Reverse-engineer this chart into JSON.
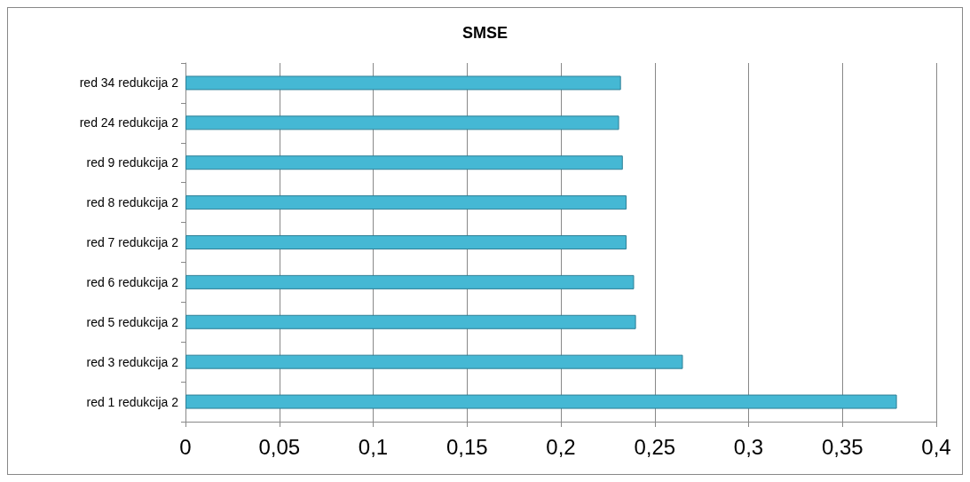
{
  "chart_data": {
    "type": "bar",
    "orientation": "horizontal",
    "title": "SMSE",
    "categories": [
      "red 34 redukcija 2",
      "red 24 redukcija 2",
      "red 9 redukcija 2",
      "red 8 redukcija 2",
      "red 7 redukcija 2",
      "red 6 redukcija 2",
      "red 5 redukcija 2",
      "red 3 redukcija 2",
      "red 1 redukcija 2"
    ],
    "values": [
      0.232,
      0.231,
      0.233,
      0.235,
      0.235,
      0.239,
      0.24,
      0.265,
      0.379
    ],
    "color": "#45b8d4",
    "xlim": [
      0,
      0.4
    ],
    "xticks": [
      0,
      {
        "value": 0.05,
        "label": "0,05"
      },
      {
        "value": 0.1,
        "label": "0,1"
      },
      {
        "value": 0.15,
        "label": "0,15"
      },
      {
        "value": 0.2,
        "label": "0,2"
      },
      {
        "value": 0.25,
        "label": "0,25"
      },
      {
        "value": 0.3,
        "label": "0,3"
      },
      {
        "value": 0.35,
        "label": "0,35"
      },
      {
        "value": 0.4,
        "label": "0,4"
      }
    ],
    "grid": "x"
  }
}
